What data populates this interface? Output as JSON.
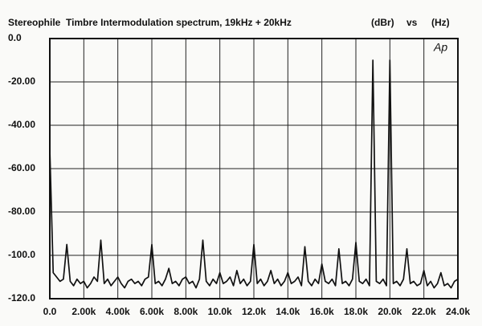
{
  "chart_data": {
    "type": "line",
    "title": "Stereophile  Timbre Intermodulation spectrum, 19kHz + 20kHz",
    "y_label": "(dBr)",
    "vs_label": "vs",
    "x_label": "(Hz)",
    "annotation": "Ap",
    "xlim": [
      0,
      24000
    ],
    "ylim": [
      -120,
      0
    ],
    "xticks": [
      {
        "value": 0,
        "label": "0.0"
      },
      {
        "value": 2000,
        "label": "2.00k"
      },
      {
        "value": 4000,
        "label": "4.00k"
      },
      {
        "value": 6000,
        "label": "6.00k"
      },
      {
        "value": 8000,
        "label": "8.00k"
      },
      {
        "value": 10000,
        "label": "10.0k"
      },
      {
        "value": 12000,
        "label": "12.0k"
      },
      {
        "value": 14000,
        "label": "14.0k"
      },
      {
        "value": 16000,
        "label": "16.0k"
      },
      {
        "value": 18000,
        "label": "18.0k"
      },
      {
        "value": 20000,
        "label": "20.0k"
      },
      {
        "value": 22000,
        "label": "22.0k"
      },
      {
        "value": 24000,
        "label": "24.0k"
      }
    ],
    "yticks": [
      {
        "value": 0,
        "label": "0.0"
      },
      {
        "value": -20,
        "label": "-20.00"
      },
      {
        "value": -40,
        "label": "-40.00"
      },
      {
        "value": -60,
        "label": "-60.00"
      },
      {
        "value": -80,
        "label": "-80.00"
      },
      {
        "value": -100,
        "label": "-100.0"
      },
      {
        "value": -120,
        "label": "-120.0"
      }
    ],
    "grid": true,
    "x": [
      0,
      200,
      400,
      600,
      800,
      1000,
      1200,
      1400,
      1600,
      1800,
      2000,
      2200,
      2400,
      2600,
      2800,
      3000,
      3200,
      3400,
      3600,
      3800,
      4000,
      4200,
      4400,
      4600,
      4800,
      5000,
      5200,
      5400,
      5600,
      5800,
      6000,
      6200,
      6400,
      6600,
      6800,
      7000,
      7200,
      7400,
      7600,
      7800,
      8000,
      8200,
      8400,
      8600,
      8800,
      9000,
      9200,
      9400,
      9600,
      9800,
      10000,
      10200,
      10400,
      10600,
      10800,
      11000,
      11200,
      11400,
      11600,
      11800,
      12000,
      12200,
      12400,
      12600,
      12800,
      13000,
      13200,
      13400,
      13600,
      13800,
      14000,
      14200,
      14400,
      14600,
      14800,
      15000,
      15200,
      15400,
      15600,
      15800,
      16000,
      16200,
      16400,
      16600,
      16800,
      17000,
      17200,
      17400,
      17600,
      17800,
      18000,
      18200,
      18400,
      18600,
      18800,
      19000,
      19200,
      19400,
      19600,
      19800,
      20000,
      20200,
      20400,
      20600,
      20800,
      21000,
      21200,
      21400,
      21600,
      21800,
      22000,
      22200,
      22400,
      22600,
      22800,
      23000,
      23200,
      23400,
      23600,
      23800,
      24000
    ],
    "series": [
      {
        "color": "#111111",
        "values": [
          -51,
          -108,
          -110,
          -112,
          -111,
          -95,
          -112,
          -114,
          -111,
          -113,
          -112,
          -115,
          -113,
          -110,
          -112,
          -93,
          -113,
          -111,
          -114,
          -112,
          -110,
          -113,
          -115,
          -112,
          -111,
          -113,
          -112,
          -114,
          -111,
          -110,
          -95,
          -113,
          -112,
          -114,
          -111,
          -106,
          -113,
          -112,
          -114,
          -111,
          -110,
          -113,
          -112,
          -115,
          -111,
          -93,
          -112,
          -114,
          -111,
          -113,
          -108,
          -113,
          -112,
          -110,
          -114,
          -107,
          -113,
          -111,
          -114,
          -112,
          -95,
          -113,
          -111,
          -114,
          -112,
          -107,
          -113,
          -111,
          -114,
          -112,
          -108,
          -113,
          -112,
          -110,
          -114,
          -96,
          -112,
          -114,
          -111,
          -113,
          -104,
          -112,
          -113,
          -111,
          -114,
          -97,
          -113,
          -112,
          -114,
          -111,
          -94,
          -112,
          -113,
          -111,
          -114,
          -10,
          -112,
          -113,
          -111,
          -114,
          -10,
          -113,
          -112,
          -114,
          -111,
          -97,
          -113,
          -112,
          -114,
          -113,
          -107,
          -114,
          -112,
          -115,
          -113,
          -108,
          -114,
          -113,
          -115,
          -112,
          -111
        ]
      }
    ]
  }
}
